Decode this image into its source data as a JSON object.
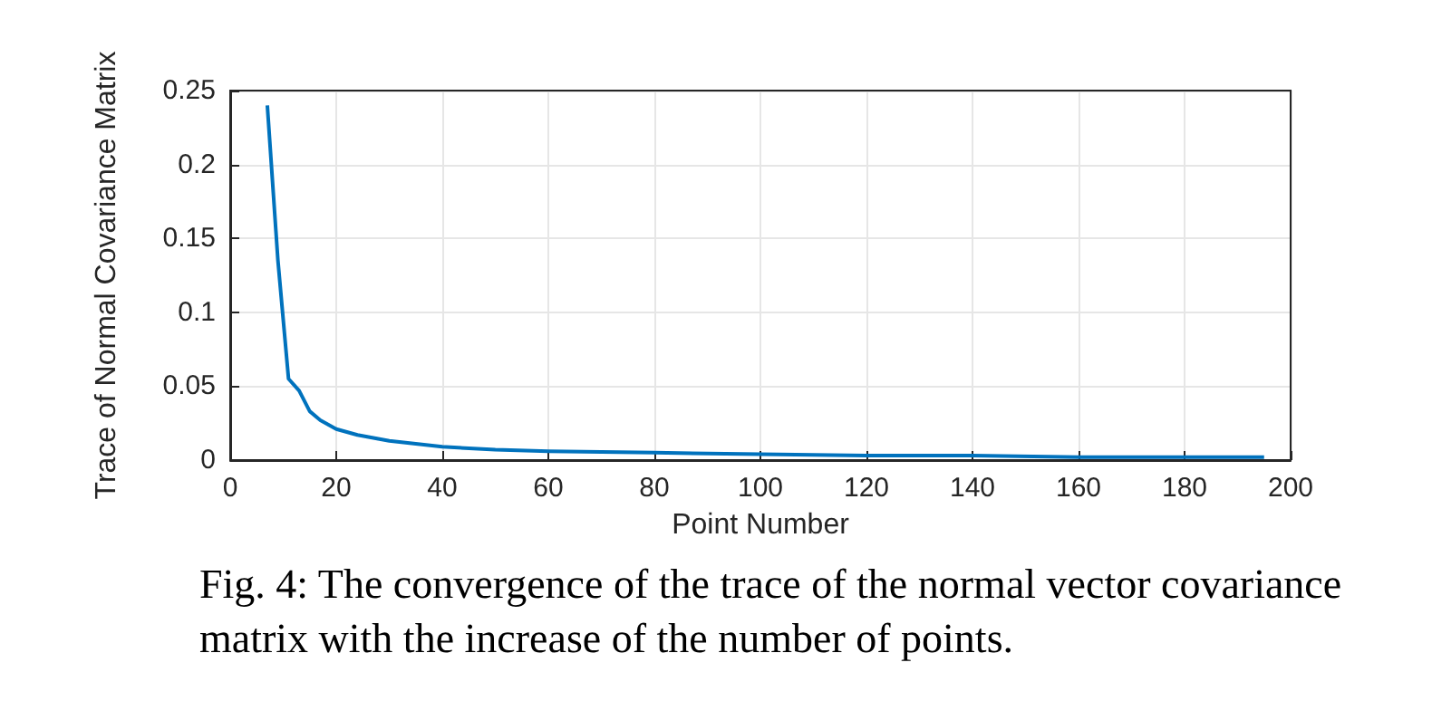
{
  "chart_data": {
    "type": "line",
    "xlabel": "Point Number",
    "ylabel": "Trace of Normal Covariance Matrix",
    "annotations": [
      "Fig. 4: The convergence of the trace of the normal vector covariance matrix with the increase of the number of points."
    ],
    "series": [
      {
        "color": "#0072bd",
        "x": [
          7,
          9,
          11,
          13,
          15,
          17,
          20,
          24,
          30,
          40,
          50,
          60,
          80,
          100,
          120,
          140,
          160,
          180,
          195
        ],
        "values": [
          0.24,
          0.135,
          0.055,
          0.047,
          0.033,
          0.027,
          0.021,
          0.017,
          0.013,
          0.009,
          0.007,
          0.006,
          0.005,
          0.004,
          0.003,
          0.003,
          0.002,
          0.002,
          0.002
        ]
      }
    ],
    "xlim": [
      0,
      200
    ],
    "xticks": [
      0,
      20,
      40,
      60,
      80,
      100,
      120,
      140,
      160,
      180,
      200
    ],
    "ylim": [
      0,
      0.25
    ],
    "yticks": [
      0,
      0.05,
      0.1,
      0.15,
      0.2,
      0.25
    ],
    "grid": true,
    "marker": "none",
    "line_style": "solid"
  }
}
